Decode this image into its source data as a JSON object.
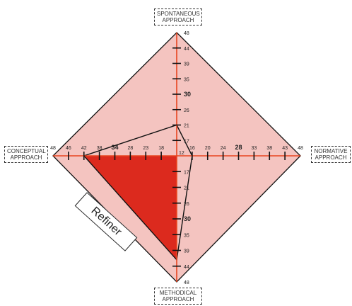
{
  "axes": {
    "top": {
      "label_line1": "SPONTANEOUS",
      "label_line2": "APPROACH",
      "ticks": [
        12,
        17,
        21,
        26,
        30,
        35,
        39,
        44,
        48
      ],
      "bold": [
        30
      ]
    },
    "bottom": {
      "label_line1": "METHODICAL",
      "label_line2": "APPROACH",
      "ticks": [
        12,
        17,
        21,
        26,
        30,
        35,
        39,
        44,
        48
      ],
      "bold": [
        30
      ]
    },
    "left": {
      "label_line1": "CONCEPTUAL",
      "label_line2": "APPROACH",
      "ticks": [
        12,
        18,
        23,
        28,
        34,
        38,
        42,
        46,
        48
      ],
      "bold": [
        34
      ]
    },
    "right": {
      "label_line1": "NORMATIVE",
      "label_line2": "APPROACH",
      "ticks": [
        12,
        16,
        20,
        24,
        28,
        33,
        38,
        43,
        48
      ],
      "bold": [
        28
      ]
    },
    "center_label": "12"
  },
  "chart_data": {
    "type": "radar",
    "axes": [
      "SPONTANEOUS APPROACH",
      "NORMATIVE APPROACH",
      "METHODICAL APPROACH",
      "CONCEPTUAL APPROACH"
    ],
    "range": [
      12,
      48
    ],
    "profile": {
      "SPONTANEOUS APPROACH": 21,
      "NORMATIVE APPROACH": 16,
      "METHODICAL APPROACH": 42,
      "CONCEPTUAL APPROACH": 42
    },
    "highlighted_quadrant": "CONCEPTUAL-METHODICAL"
  },
  "type_label": "Refiner",
  "colors": {
    "outer_fill": "#f4c4c0",
    "quadrant_fill": "#dc2a1e",
    "axis": "#e8451f",
    "outline": "#111111"
  }
}
